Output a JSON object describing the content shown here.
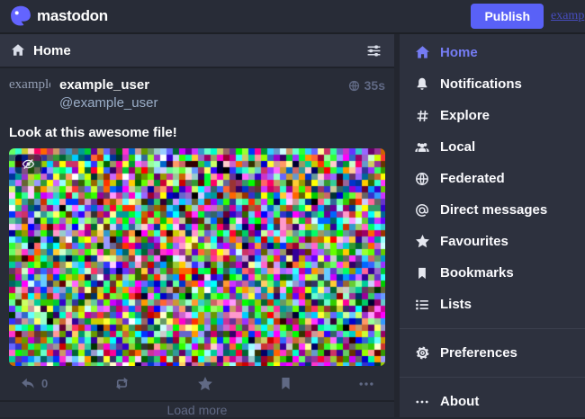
{
  "topbar": {
    "brand": "mastodon",
    "brand_icon": "mastodon-logo",
    "publish_button": "Publish",
    "account_link": "examp"
  },
  "column": {
    "header": {
      "icon": "home-icon",
      "title": "Home",
      "settings_icon": "sliders-icon"
    },
    "status": {
      "avatar_alt": "example",
      "display_name": "example_user",
      "handle": "@example_user",
      "visibility_icon": "globe-icon",
      "time": "35s",
      "content": "Look at this awesome file!",
      "media": {
        "type": "random-color-noise-image",
        "hide_icon": "eye-slash-icon"
      },
      "actions": {
        "reply_icon": "reply-icon",
        "reply_count": "0",
        "boost_icon": "boost-icon",
        "favourite_icon": "star-icon",
        "bookmark_icon": "bookmark-icon",
        "more_icon": "ellipsis-icon"
      }
    },
    "load_more": "Load more"
  },
  "sidebar": {
    "items": [
      {
        "icon": "home-icon",
        "label": "Home",
        "active": true
      },
      {
        "icon": "bell-icon",
        "label": "Notifications"
      },
      {
        "icon": "hashtag-icon",
        "label": "Explore"
      },
      {
        "icon": "users-icon",
        "label": "Local"
      },
      {
        "icon": "globe-icon",
        "label": "Federated"
      },
      {
        "icon": "at-icon",
        "label": "Direct messages"
      },
      {
        "icon": "star-icon",
        "label": "Favourites"
      },
      {
        "icon": "bookmark-icon",
        "label": "Bookmarks"
      },
      {
        "icon": "list-icon",
        "label": "Lists"
      }
    ],
    "footer_items": [
      {
        "icon": "gear-icon",
        "label": "Preferences"
      },
      {
        "icon": "ellipsis-icon",
        "label": "About"
      }
    ]
  },
  "colors": {
    "accent": "#5961f7",
    "active_link": "#757cf4",
    "page_background": "#23262f",
    "column_background": "#282c37",
    "header_background": "#313543",
    "sidebar_background": "#2d313e",
    "muted_text": "#9baec8",
    "dim_text": "#606984"
  }
}
